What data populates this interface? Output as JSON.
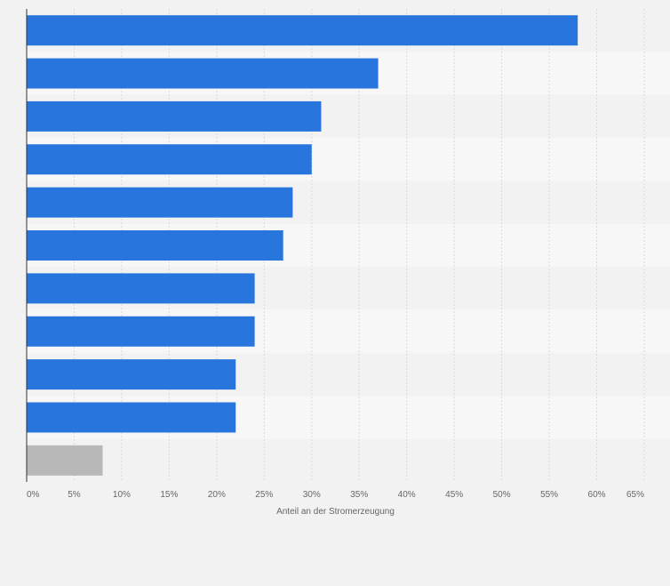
{
  "chart_data": {
    "type": "bar",
    "orientation": "horizontal",
    "categories": [
      "",
      "",
      "",
      "",
      "",
      "",
      "",
      "",
      "",
      "",
      ""
    ],
    "values": [
      58,
      37,
      31,
      30,
      28,
      27,
      24,
      24,
      22,
      22,
      8
    ],
    "xlabel": "Anteil an der Stromerzeugung",
    "ylabel": "",
    "xlim": [
      0,
      65
    ],
    "ticks": [
      0,
      5,
      10,
      15,
      20,
      25,
      30,
      35,
      40,
      45,
      50,
      55,
      60,
      65
    ],
    "tick_labels": [
      "0%",
      "5%",
      "10%",
      "15%",
      "20%",
      "25%",
      "30%",
      "35%",
      "40%",
      "45%",
      "50%",
      "55%",
      "60%",
      "65%"
    ],
    "grid": true,
    "legend": "none",
    "colors": {
      "bar": "#2876dd",
      "highlight_bar": "#b8b8b8",
      "band_light": "#f7f7f7",
      "band_dark": "#f2f2f2",
      "grid": "#d9d9d9",
      "axis": "#333333"
    },
    "highlight_index": 10
  }
}
